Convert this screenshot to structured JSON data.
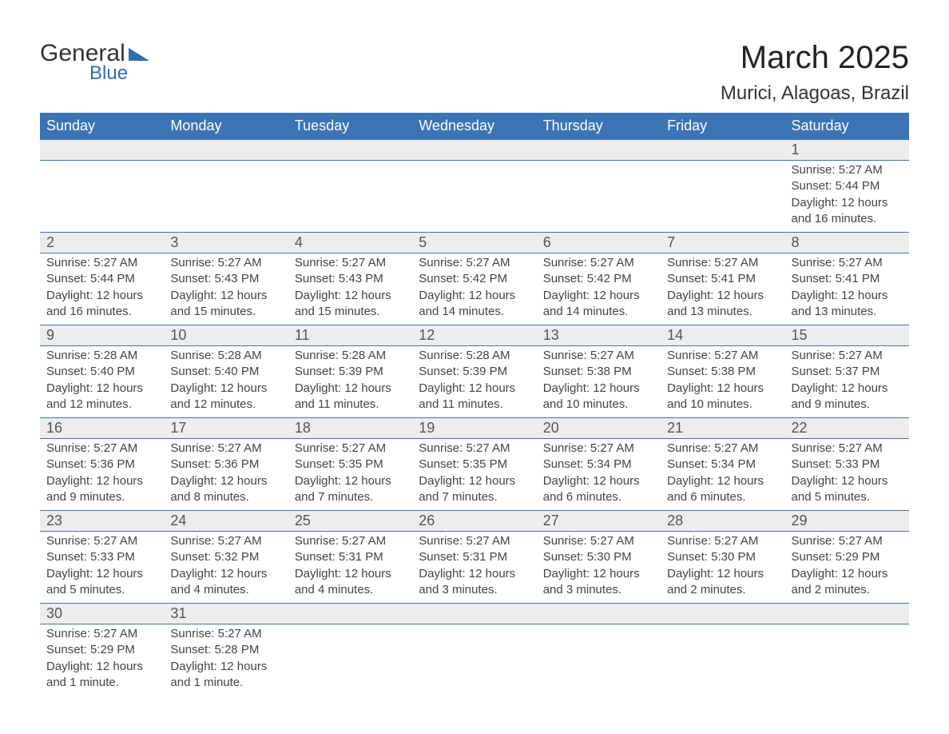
{
  "logo": {
    "text_general": "General",
    "text_blue": "Blue",
    "triangle_color": "#2f6db2"
  },
  "header": {
    "title": "March 2025",
    "location": "Murici, Alagoas, Brazil"
  },
  "style": {
    "header_bg": "#3b74b4",
    "header_fg": "#ffffff",
    "daynum_bg": "#ededed",
    "border_color": "#3b74b4",
    "text_color": "#444444",
    "title_fontsize": 40,
    "location_fontsize": 24,
    "dayheader_fontsize": 18,
    "cell_fontsize": 15
  },
  "day_headers": [
    "Sunday",
    "Monday",
    "Tuesday",
    "Wednesday",
    "Thursday",
    "Friday",
    "Saturday"
  ],
  "weeks": [
    [
      null,
      null,
      null,
      null,
      null,
      null,
      {
        "n": "1",
        "sunrise": "Sunrise: 5:27 AM",
        "sunset": "Sunset: 5:44 PM",
        "daylight": "Daylight: 12 hours and 16 minutes."
      }
    ],
    [
      {
        "n": "2",
        "sunrise": "Sunrise: 5:27 AM",
        "sunset": "Sunset: 5:44 PM",
        "daylight": "Daylight: 12 hours and 16 minutes."
      },
      {
        "n": "3",
        "sunrise": "Sunrise: 5:27 AM",
        "sunset": "Sunset: 5:43 PM",
        "daylight": "Daylight: 12 hours and 15 minutes."
      },
      {
        "n": "4",
        "sunrise": "Sunrise: 5:27 AM",
        "sunset": "Sunset: 5:43 PM",
        "daylight": "Daylight: 12 hours and 15 minutes."
      },
      {
        "n": "5",
        "sunrise": "Sunrise: 5:27 AM",
        "sunset": "Sunset: 5:42 PM",
        "daylight": "Daylight: 12 hours and 14 minutes."
      },
      {
        "n": "6",
        "sunrise": "Sunrise: 5:27 AM",
        "sunset": "Sunset: 5:42 PM",
        "daylight": "Daylight: 12 hours and 14 minutes."
      },
      {
        "n": "7",
        "sunrise": "Sunrise: 5:27 AM",
        "sunset": "Sunset: 5:41 PM",
        "daylight": "Daylight: 12 hours and 13 minutes."
      },
      {
        "n": "8",
        "sunrise": "Sunrise: 5:27 AM",
        "sunset": "Sunset: 5:41 PM",
        "daylight": "Daylight: 12 hours and 13 minutes."
      }
    ],
    [
      {
        "n": "9",
        "sunrise": "Sunrise: 5:28 AM",
        "sunset": "Sunset: 5:40 PM",
        "daylight": "Daylight: 12 hours and 12 minutes."
      },
      {
        "n": "10",
        "sunrise": "Sunrise: 5:28 AM",
        "sunset": "Sunset: 5:40 PM",
        "daylight": "Daylight: 12 hours and 12 minutes."
      },
      {
        "n": "11",
        "sunrise": "Sunrise: 5:28 AM",
        "sunset": "Sunset: 5:39 PM",
        "daylight": "Daylight: 12 hours and 11 minutes."
      },
      {
        "n": "12",
        "sunrise": "Sunrise: 5:28 AM",
        "sunset": "Sunset: 5:39 PM",
        "daylight": "Daylight: 12 hours and 11 minutes."
      },
      {
        "n": "13",
        "sunrise": "Sunrise: 5:27 AM",
        "sunset": "Sunset: 5:38 PM",
        "daylight": "Daylight: 12 hours and 10 minutes."
      },
      {
        "n": "14",
        "sunrise": "Sunrise: 5:27 AM",
        "sunset": "Sunset: 5:38 PM",
        "daylight": "Daylight: 12 hours and 10 minutes."
      },
      {
        "n": "15",
        "sunrise": "Sunrise: 5:27 AM",
        "sunset": "Sunset: 5:37 PM",
        "daylight": "Daylight: 12 hours and 9 minutes."
      }
    ],
    [
      {
        "n": "16",
        "sunrise": "Sunrise: 5:27 AM",
        "sunset": "Sunset: 5:36 PM",
        "daylight": "Daylight: 12 hours and 9 minutes."
      },
      {
        "n": "17",
        "sunrise": "Sunrise: 5:27 AM",
        "sunset": "Sunset: 5:36 PM",
        "daylight": "Daylight: 12 hours and 8 minutes."
      },
      {
        "n": "18",
        "sunrise": "Sunrise: 5:27 AM",
        "sunset": "Sunset: 5:35 PM",
        "daylight": "Daylight: 12 hours and 7 minutes."
      },
      {
        "n": "19",
        "sunrise": "Sunrise: 5:27 AM",
        "sunset": "Sunset: 5:35 PM",
        "daylight": "Daylight: 12 hours and 7 minutes."
      },
      {
        "n": "20",
        "sunrise": "Sunrise: 5:27 AM",
        "sunset": "Sunset: 5:34 PM",
        "daylight": "Daylight: 12 hours and 6 minutes."
      },
      {
        "n": "21",
        "sunrise": "Sunrise: 5:27 AM",
        "sunset": "Sunset: 5:34 PM",
        "daylight": "Daylight: 12 hours and 6 minutes."
      },
      {
        "n": "22",
        "sunrise": "Sunrise: 5:27 AM",
        "sunset": "Sunset: 5:33 PM",
        "daylight": "Daylight: 12 hours and 5 minutes."
      }
    ],
    [
      {
        "n": "23",
        "sunrise": "Sunrise: 5:27 AM",
        "sunset": "Sunset: 5:33 PM",
        "daylight": "Daylight: 12 hours and 5 minutes."
      },
      {
        "n": "24",
        "sunrise": "Sunrise: 5:27 AM",
        "sunset": "Sunset: 5:32 PM",
        "daylight": "Daylight: 12 hours and 4 minutes."
      },
      {
        "n": "25",
        "sunrise": "Sunrise: 5:27 AM",
        "sunset": "Sunset: 5:31 PM",
        "daylight": "Daylight: 12 hours and 4 minutes."
      },
      {
        "n": "26",
        "sunrise": "Sunrise: 5:27 AM",
        "sunset": "Sunset: 5:31 PM",
        "daylight": "Daylight: 12 hours and 3 minutes."
      },
      {
        "n": "27",
        "sunrise": "Sunrise: 5:27 AM",
        "sunset": "Sunset: 5:30 PM",
        "daylight": "Daylight: 12 hours and 3 minutes."
      },
      {
        "n": "28",
        "sunrise": "Sunrise: 5:27 AM",
        "sunset": "Sunset: 5:30 PM",
        "daylight": "Daylight: 12 hours and 2 minutes."
      },
      {
        "n": "29",
        "sunrise": "Sunrise: 5:27 AM",
        "sunset": "Sunset: 5:29 PM",
        "daylight": "Daylight: 12 hours and 2 minutes."
      }
    ],
    [
      {
        "n": "30",
        "sunrise": "Sunrise: 5:27 AM",
        "sunset": "Sunset: 5:29 PM",
        "daylight": "Daylight: 12 hours and 1 minute."
      },
      {
        "n": "31",
        "sunrise": "Sunrise: 5:27 AM",
        "sunset": "Sunset: 5:28 PM",
        "daylight": "Daylight: 12 hours and 1 minute."
      },
      null,
      null,
      null,
      null,
      null
    ]
  ]
}
